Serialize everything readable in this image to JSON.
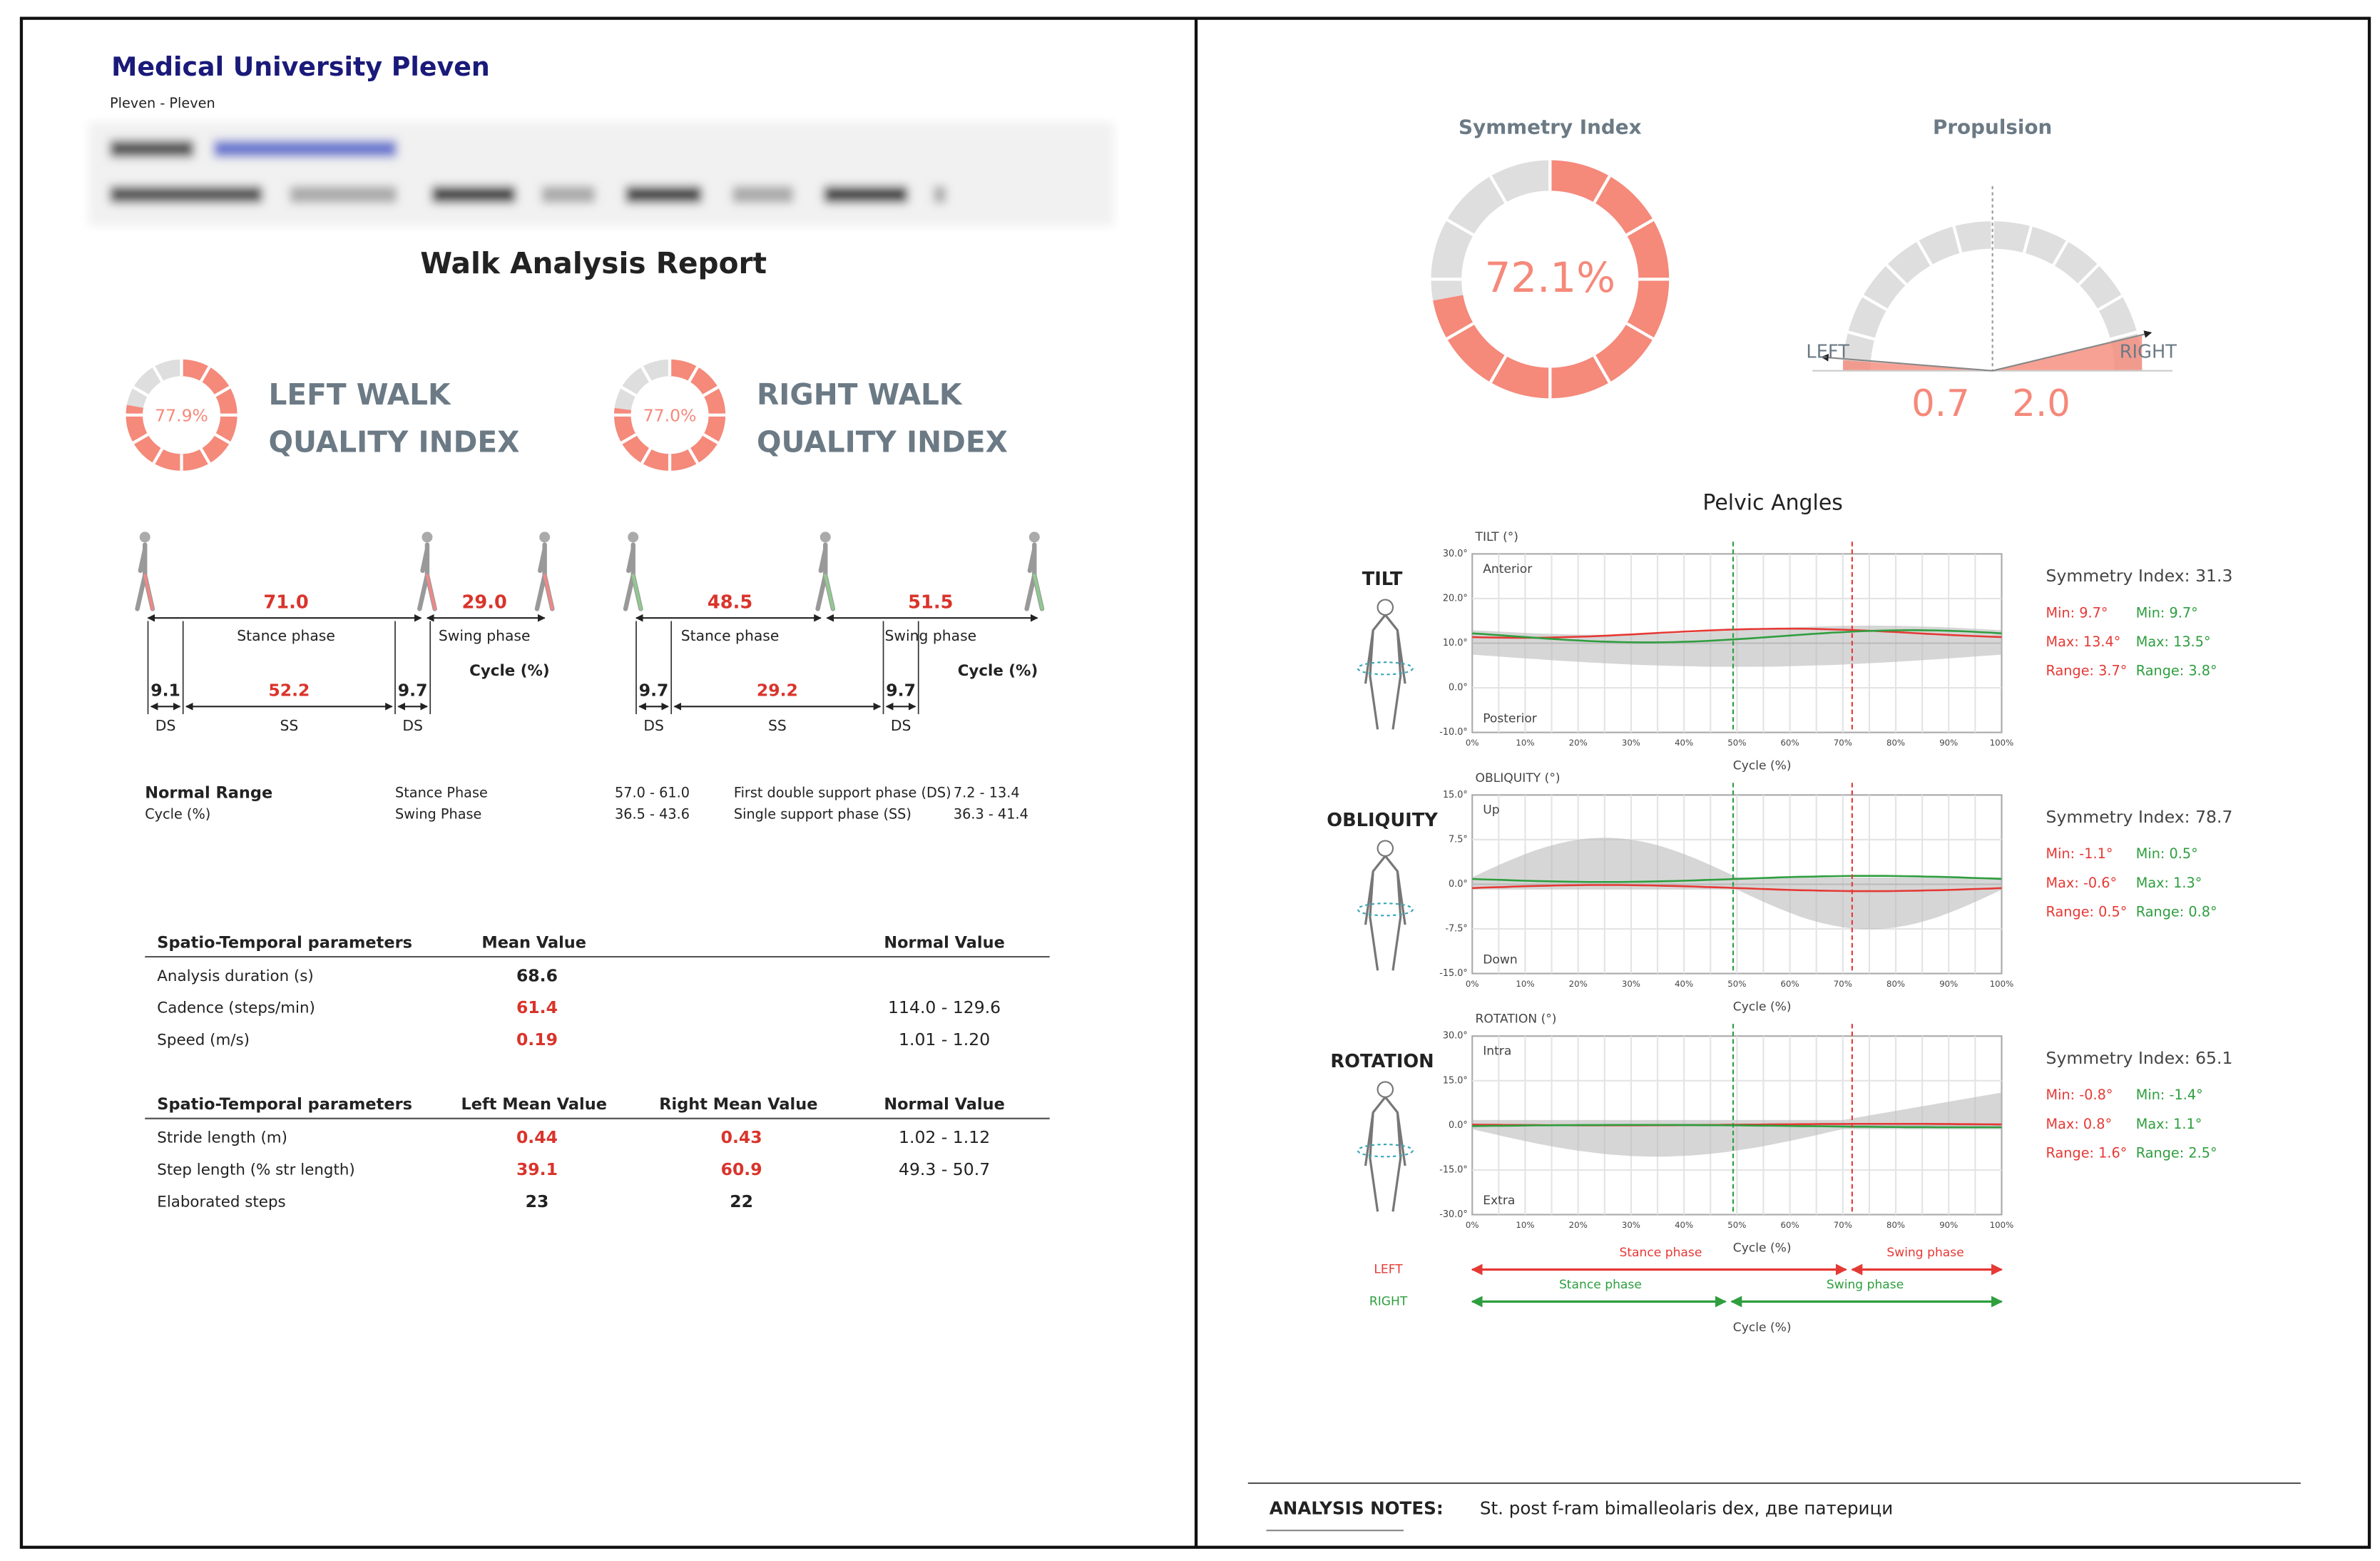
{
  "header": {
    "institution": "Medical University Pleven",
    "location": "Pleven - Pleven"
  },
  "title": "Walk Analysis Report",
  "quality": [
    {
      "value": "77.9%",
      "label": [
        "LEFT WALK",
        "QUALITY INDEX"
      ]
    },
    {
      "value": "77.0%",
      "label": [
        "RIGHT WALK",
        "QUALITY INDEX"
      ]
    }
  ],
  "cycles": [
    {
      "stance": "71.0",
      "swing": "29.0",
      "ds1": "9.1",
      "ss": "52.2",
      "ds2": "9.7"
    },
    {
      "stance": "48.5",
      "swing": "51.5",
      "ds1": "9.7",
      "ss": "29.2",
      "ds2": "9.7"
    }
  ],
  "cycle_labels": {
    "stance": "Stance phase",
    "swing": "Swing phase",
    "cycle": "Cycle (%)",
    "ds": "DS",
    "ss": "SS"
  },
  "normal_range": {
    "title": "Normal Range",
    "unit": "Cycle (%)",
    "rows": [
      [
        "Stance Phase",
        "57.0 - 61.0",
        "First double support phase (DS)",
        "7.2 - 13.4"
      ],
      [
        "Swing Phase",
        "36.5 - 43.6",
        "Single support phase (SS)",
        "36.3 - 41.4"
      ]
    ]
  },
  "table1": {
    "headers": [
      "Spatio-Temporal parameters",
      "Mean Value",
      "Normal Value"
    ],
    "rows": [
      {
        "name": "Analysis duration (s)",
        "mean": "68.6"
      },
      {
        "name": "Cadence (steps/min)",
        "mean": "61.4",
        "normal": "114.0 - 129.6"
      },
      {
        "name": "Speed (m/s)",
        "mean": "0.19",
        "normal": "1.01 - 1.20"
      }
    ]
  },
  "table2": {
    "headers": [
      "Spatio-Temporal parameters",
      "Left Mean Value",
      "Right Mean Value",
      "Normal Value"
    ],
    "rows": [
      {
        "name": "Stride length (m)",
        "left": "0.44",
        "right": "0.43",
        "normal": "1.02 - 1.12"
      },
      {
        "name": "Step length (% str length)",
        "left": "39.1",
        "right": "60.9",
        "normal": "49.3 - 50.7"
      },
      {
        "name": "Elaborated steps",
        "left": "23",
        "right": "22"
      }
    ]
  },
  "symmetry": {
    "title": "Symmetry Index",
    "value": "72.1%"
  },
  "propulsion": {
    "title": "Propulsion",
    "left_label": "LEFT",
    "right_label": "RIGHT",
    "left": "0.7",
    "right": "2.0"
  },
  "pelvic": {
    "title": "Pelvic Angles",
    "x_label": "Cycle (%)",
    "x_ticks": [
      "0%",
      "10%",
      "20%",
      "30%",
      "40%",
      "50%",
      "60%",
      "70%",
      "80%",
      "90%",
      "100%"
    ],
    "charts": [
      {
        "name": "TILT",
        "axis_title": "TILT (°)",
        "top_label": "Anterior",
        "bottom_label": "Posterior",
        "y_ticks": [
          "30.0°",
          "20.0°",
          "10.0°",
          "0.0°",
          "-10.0°"
        ],
        "symmetry": "Symmetry Index: 31.3",
        "left": [
          "Min: 9.7°",
          "Max: 13.4°",
          "Range: 3.7°"
        ],
        "right": [
          "Min: 9.7°",
          "Max: 13.5°",
          "Range: 3.8°"
        ]
      },
      {
        "name": "OBLIQUITY",
        "axis_title": "OBLIQUITY (°)",
        "top_label": "Up",
        "bottom_label": "Down",
        "y_ticks": [
          "15.0°",
          "7.5°",
          "0.0°",
          "-7.5°",
          "-15.0°"
        ],
        "symmetry": "Symmetry Index: 78.7",
        "left": [
          "Min: -1.1°",
          "Max: -0.6°",
          "Range: 0.5°"
        ],
        "right": [
          "Min: 0.5°",
          "Max: 1.3°",
          "Range: 0.8°"
        ]
      },
      {
        "name": "ROTATION",
        "axis_title": "ROTATION (°)",
        "top_label": "Intra",
        "bottom_label": "Extra",
        "y_ticks": [
          "30.0°",
          "15.0°",
          "0.0°",
          "-15.0°",
          "-30.0°"
        ],
        "symmetry": "Symmetry Index: 65.1",
        "left": [
          "Min: -0.8°",
          "Max: 0.8°",
          "Range: 1.6°"
        ],
        "right": [
          "Min: -1.4°",
          "Max: 1.1°",
          "Range: 2.5°"
        ]
      }
    ]
  },
  "phases": {
    "left": "LEFT",
    "right": "RIGHT",
    "stance": "Stance phase",
    "swing": "Swing phase"
  },
  "notes": {
    "label": "ANALYSIS NOTES:",
    "text": "St. post f-ram bimalleolaris dex, две патерици"
  }
}
